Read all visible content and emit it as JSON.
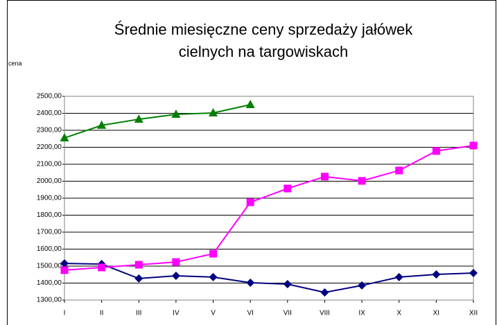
{
  "chart_data": {
    "type": "line",
    "title": [
      "Średnie miesięczne ceny sprzedaży jałówek",
      "cielnych na targowiskach"
    ],
    "y_label": "cena",
    "categories": [
      "I",
      "II",
      "III",
      "IV",
      "V",
      "VI",
      "VII",
      "VIII",
      "IX",
      "X",
      "XI",
      "XII"
    ],
    "series": [
      {
        "color": "#000080",
        "marker": "diamond",
        "values": [
          1516,
          1512,
          1427,
          1443,
          1435,
          1402,
          1394,
          1345,
          1386,
          1435,
          1451,
          1459
        ]
      },
      {
        "color": "#ff00ff",
        "marker": "square",
        "values": [
          1476,
          1492,
          1508,
          1524,
          1573,
          1876,
          1957,
          2027,
          2002,
          2063,
          2178,
          2210
        ]
      },
      {
        "color": "#008000",
        "marker": "triangle",
        "values": [
          2255,
          2329,
          2365,
          2394,
          2402,
          2451,
          null,
          null,
          null,
          null,
          null,
          null
        ]
      }
    ],
    "ylim": [
      1300,
      2500
    ],
    "yticks": [
      {
        "value": 1300,
        "label": "1300,00"
      },
      {
        "value": 1400,
        "label": "1400,00"
      },
      {
        "value": 1500,
        "label": "1500,00"
      },
      {
        "value": 1600,
        "label": "1600,00"
      },
      {
        "value": 1700,
        "label": "1700,00"
      },
      {
        "value": 1800,
        "label": "1800,00"
      },
      {
        "value": 1900,
        "label": "1900,00"
      },
      {
        "value": 2000,
        "label": "2000,00"
      },
      {
        "value": 2100,
        "label": "2100,00"
      },
      {
        "value": 2200,
        "label": "2200,00"
      },
      {
        "value": 2300,
        "label": "2300,00"
      },
      {
        "value": 2400,
        "label": "2400,00"
      },
      {
        "value": 2500,
        "label": "2500,00"
      }
    ],
    "grid": true
  }
}
